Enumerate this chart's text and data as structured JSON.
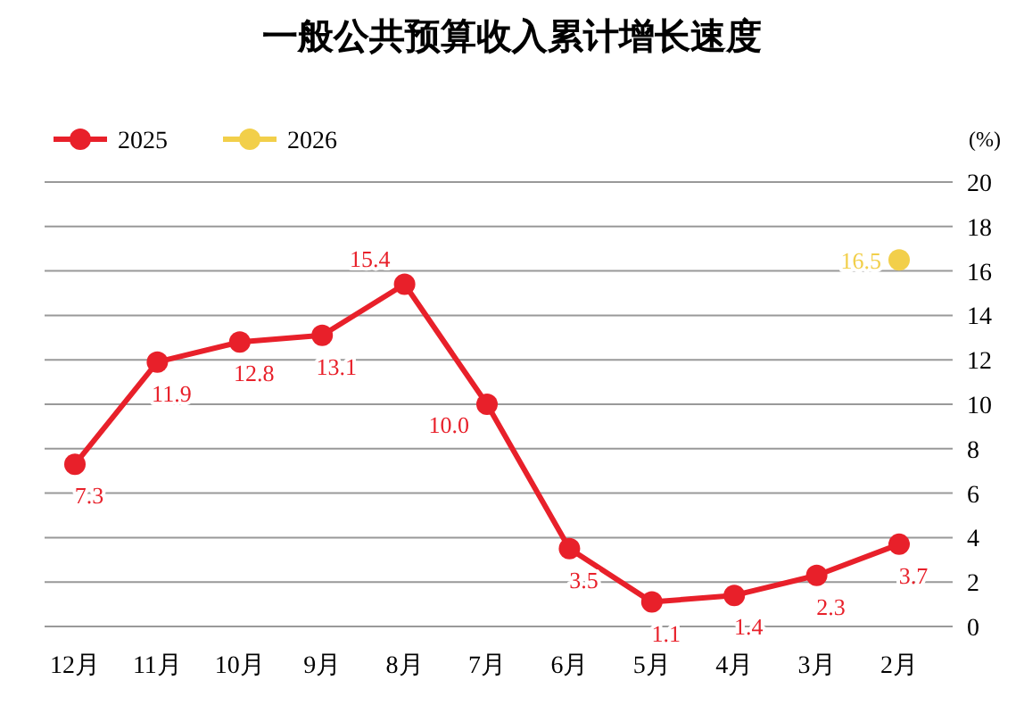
{
  "chart_data": {
    "type": "line",
    "title": "一般公共预算收入累计增长速度",
    "ylabel": "(%)",
    "categories": [
      "12月",
      "11月",
      "10月",
      "9月",
      "8月",
      "7月",
      "6月",
      "5月",
      "4月",
      "3月",
      "2月"
    ],
    "series": [
      {
        "name": "2025",
        "color": "#e8202a",
        "values": [
          7.3,
          11.9,
          12.8,
          13.1,
          15.4,
          10.0,
          3.5,
          1.1,
          1.4,
          2.3,
          3.7
        ],
        "value_labels": [
          "7.3",
          "11.9",
          "12.8",
          "13.1",
          "15.4",
          "10.0",
          "3.5",
          "1.1",
          "1.4",
          "2.3",
          "3.7"
        ]
      },
      {
        "name": "2026",
        "color": "#f2cf4a",
        "values": [
          null,
          null,
          null,
          null,
          null,
          null,
          null,
          null,
          null,
          null,
          16.5
        ],
        "value_labels": [
          null,
          null,
          null,
          null,
          null,
          null,
          null,
          null,
          null,
          null,
          "16.5"
        ]
      }
    ],
    "ylim": [
      0,
      20
    ],
    "yticks": [
      0,
      2,
      4,
      6,
      8,
      10,
      12,
      14,
      16,
      18,
      20
    ],
    "grid": "y",
    "legend": "top left",
    "marker": "circle",
    "line_style": "solid"
  }
}
